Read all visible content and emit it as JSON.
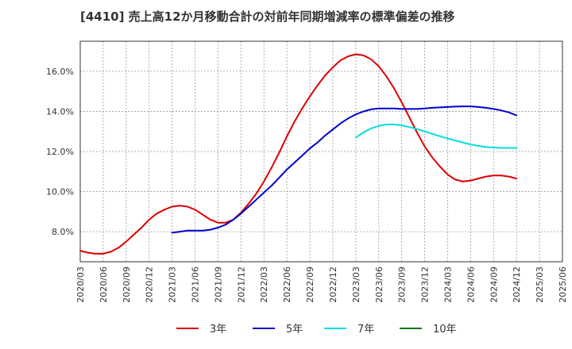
{
  "chart_data": {
    "type": "line",
    "title": "[4410]  売上高12か月移動合計の対前年同期増減率の標準偏差の推移",
    "xlabel": "",
    "ylabel": "",
    "x_ticks": [
      "2020/03",
      "2020/06",
      "2020/09",
      "2020/12",
      "2021/03",
      "2021/06",
      "2021/09",
      "2021/12",
      "2022/03",
      "2022/06",
      "2022/09",
      "2022/12",
      "2023/03",
      "2023/06",
      "2023/09",
      "2023/12",
      "2024/03",
      "2024/06",
      "2024/09",
      "2024/12",
      "2025/03",
      "2025/06"
    ],
    "y_ticks": [
      "8.0%",
      "10.0%",
      "12.0%",
      "14.0%",
      "16.0%"
    ],
    "ylim": [
      6.5,
      17.5
    ],
    "grid": true,
    "legend_position": "bottom",
    "colors": {
      "3年": "#dd0000",
      "5年": "#0000cc",
      "7年": "#00dddd",
      "10年": "#007700"
    },
    "series": [
      {
        "name": "3年",
        "color": "#dd0000",
        "points": [
          [
            "2020/03",
            7.05
          ],
          [
            "2020/04",
            6.95
          ],
          [
            "2020/05",
            6.9
          ],
          [
            "2020/06",
            6.9
          ],
          [
            "2020/07",
            7.0
          ],
          [
            "2020/08",
            7.2
          ],
          [
            "2020/09",
            7.5
          ],
          [
            "2020/10",
            7.85
          ],
          [
            "2020/11",
            8.2
          ],
          [
            "2020/12",
            8.6
          ],
          [
            "2021/01",
            8.9
          ],
          [
            "2021/02",
            9.1
          ],
          [
            "2021/03",
            9.25
          ],
          [
            "2021/04",
            9.3
          ],
          [
            "2021/05",
            9.25
          ],
          [
            "2021/06",
            9.1
          ],
          [
            "2021/07",
            8.85
          ],
          [
            "2021/08",
            8.6
          ],
          [
            "2021/09",
            8.45
          ],
          [
            "2021/10",
            8.45
          ],
          [
            "2021/11",
            8.6
          ],
          [
            "2021/12",
            8.95
          ],
          [
            "2022/01",
            9.4
          ],
          [
            "2022/02",
            9.9
          ],
          [
            "2022/03",
            10.5
          ],
          [
            "2022/04",
            11.2
          ],
          [
            "2022/05",
            11.95
          ],
          [
            "2022/06",
            12.75
          ],
          [
            "2022/07",
            13.5
          ],
          [
            "2022/08",
            14.15
          ],
          [
            "2022/09",
            14.75
          ],
          [
            "2022/10",
            15.3
          ],
          [
            "2022/11",
            15.8
          ],
          [
            "2022/12",
            16.2
          ],
          [
            "2023/01",
            16.55
          ],
          [
            "2023/02",
            16.75
          ],
          [
            "2023/03",
            16.85
          ],
          [
            "2023/04",
            16.8
          ],
          [
            "2023/05",
            16.6
          ],
          [
            "2023/06",
            16.25
          ],
          [
            "2023/07",
            15.75
          ],
          [
            "2023/08",
            15.15
          ],
          [
            "2023/09",
            14.45
          ],
          [
            "2023/10",
            13.7
          ],
          [
            "2023/11",
            12.95
          ],
          [
            "2023/12",
            12.25
          ],
          [
            "2024/01",
            11.7
          ],
          [
            "2024/02",
            11.25
          ],
          [
            "2024/03",
            10.85
          ],
          [
            "2024/04",
            10.6
          ],
          [
            "2024/05",
            10.5
          ],
          [
            "2024/06",
            10.55
          ],
          [
            "2024/07",
            10.65
          ],
          [
            "2024/08",
            10.75
          ],
          [
            "2024/09",
            10.8
          ],
          [
            "2024/10",
            10.8
          ],
          [
            "2024/11",
            10.75
          ],
          [
            "2024/12",
            10.65
          ]
        ]
      },
      {
        "name": "5年",
        "color": "#0000cc",
        "points": [
          [
            "2021/03",
            7.95
          ],
          [
            "2021/04",
            8.0
          ],
          [
            "2021/05",
            8.05
          ],
          [
            "2021/06",
            8.05
          ],
          [
            "2021/07",
            8.05
          ],
          [
            "2021/08",
            8.1
          ],
          [
            "2021/09",
            8.2
          ],
          [
            "2021/10",
            8.35
          ],
          [
            "2021/11",
            8.6
          ],
          [
            "2021/12",
            8.9
          ],
          [
            "2022/01",
            9.25
          ],
          [
            "2022/02",
            9.6
          ],
          [
            "2022/03",
            9.95
          ],
          [
            "2022/04",
            10.3
          ],
          [
            "2022/05",
            10.7
          ],
          [
            "2022/06",
            11.1
          ],
          [
            "2022/07",
            11.45
          ],
          [
            "2022/08",
            11.8
          ],
          [
            "2022/09",
            12.15
          ],
          [
            "2022/10",
            12.45
          ],
          [
            "2022/11",
            12.8
          ],
          [
            "2022/12",
            13.1
          ],
          [
            "2023/01",
            13.4
          ],
          [
            "2023/02",
            13.65
          ],
          [
            "2023/03",
            13.85
          ],
          [
            "2023/04",
            14.0
          ],
          [
            "2023/05",
            14.1
          ],
          [
            "2023/06",
            14.15
          ],
          [
            "2023/07",
            14.15
          ],
          [
            "2023/08",
            14.15
          ],
          [
            "2023/09",
            14.12
          ],
          [
            "2023/10",
            14.12
          ],
          [
            "2023/11",
            14.12
          ],
          [
            "2023/12",
            14.15
          ],
          [
            "2024/01",
            14.18
          ],
          [
            "2024/02",
            14.2
          ],
          [
            "2024/03",
            14.22
          ],
          [
            "2024/04",
            14.24
          ],
          [
            "2024/05",
            14.25
          ],
          [
            "2024/06",
            14.25
          ],
          [
            "2024/07",
            14.22
          ],
          [
            "2024/08",
            14.18
          ],
          [
            "2024/09",
            14.12
          ],
          [
            "2024/10",
            14.05
          ],
          [
            "2024/11",
            13.95
          ],
          [
            "2024/12",
            13.8
          ]
        ]
      },
      {
        "name": "7年",
        "color": "#00dddd",
        "points": [
          [
            "2023/03",
            12.7
          ],
          [
            "2023/04",
            12.95
          ],
          [
            "2023/05",
            13.15
          ],
          [
            "2023/06",
            13.28
          ],
          [
            "2023/07",
            13.35
          ],
          [
            "2023/08",
            13.35
          ],
          [
            "2023/09",
            13.3
          ],
          [
            "2023/10",
            13.22
          ],
          [
            "2023/11",
            13.12
          ],
          [
            "2023/12",
            13.0
          ],
          [
            "2024/01",
            12.88
          ],
          [
            "2024/02",
            12.76
          ],
          [
            "2024/03",
            12.65
          ],
          [
            "2024/04",
            12.55
          ],
          [
            "2024/05",
            12.45
          ],
          [
            "2024/06",
            12.35
          ],
          [
            "2024/07",
            12.28
          ],
          [
            "2024/08",
            12.22
          ],
          [
            "2024/09",
            12.2
          ],
          [
            "2024/10",
            12.18
          ],
          [
            "2024/11",
            12.18
          ],
          [
            "2024/12",
            12.18
          ]
        ]
      },
      {
        "name": "10年",
        "color": "#007700",
        "points": []
      }
    ]
  }
}
